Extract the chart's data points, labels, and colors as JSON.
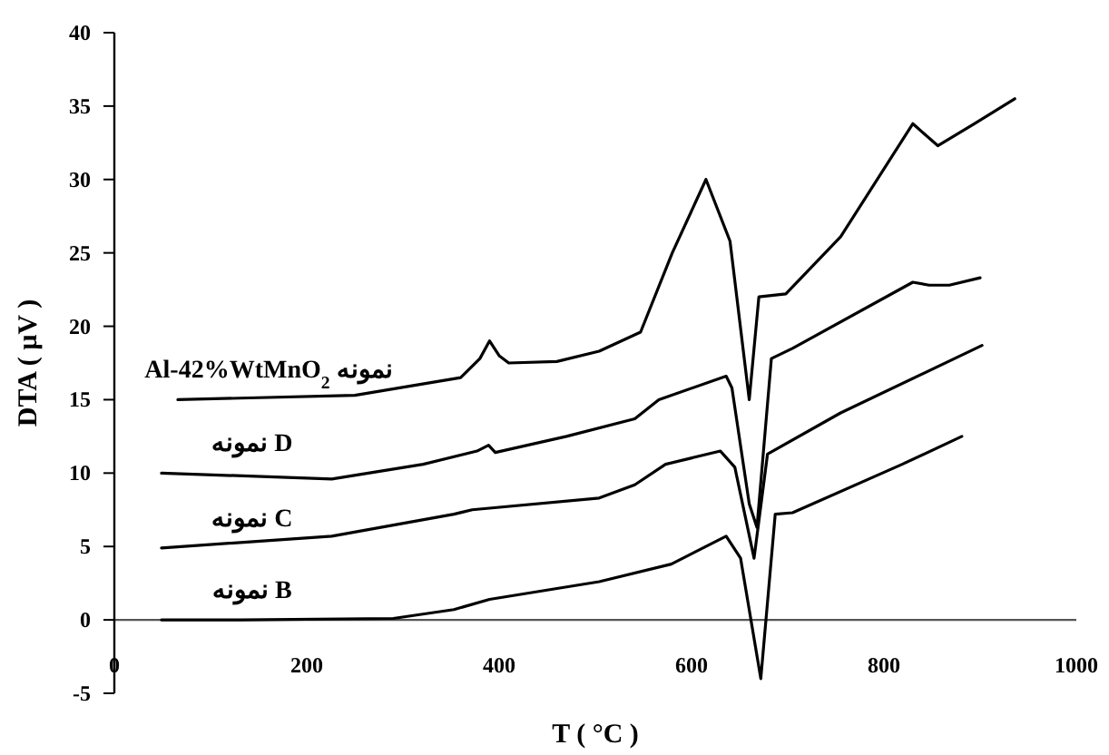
{
  "chart_data": {
    "type": "line",
    "xlabel": "T ( °C )",
    "ylabel": "DTA ( µV )",
    "xlim": [
      0,
      1000
    ],
    "xticks": [
      0,
      200,
      400,
      600,
      800,
      1000
    ],
    "ylim": [
      -5,
      40
    ],
    "yticks": [
      -5,
      0,
      5,
      10,
      15,
      20,
      25,
      30,
      35,
      40
    ],
    "grid": false,
    "marker": "none",
    "line_style": "solid",
    "series": [
      {
        "name": "Al-42%WtMnO$_{2}$  نمونه",
        "color": "#000000",
        "x": [
          66,
          250,
          360,
          380,
          390,
          400,
          410,
          460,
          504,
          547,
          580,
          615,
          640,
          660,
          670,
          698,
          755,
          830,
          856,
          894,
          936
        ],
        "values": [
          15.0,
          15.3,
          16.5,
          17.8,
          19.0,
          18.0,
          17.5,
          17.6,
          18.3,
          19.6,
          25.0,
          30.0,
          25.8,
          15.0,
          22.0,
          22.2,
          26.1,
          33.8,
          32.3,
          33.8,
          35.5
        ]
      },
      {
        "name": "نمونه D",
        "color": "#000000",
        "x": [
          49,
          226,
          321,
          377,
          389,
          396,
          470,
          541,
          566,
          636,
          642,
          660,
          668,
          683,
          705,
          830,
          847,
          868,
          900
        ],
        "values": [
          10.0,
          9.6,
          10.6,
          11.5,
          11.9,
          11.4,
          12.5,
          13.7,
          15.0,
          16.6,
          15.8,
          7.9,
          6.3,
          17.8,
          18.5,
          23.0,
          22.8,
          22.8,
          23.3
        ]
      },
      {
        "name": "نمونه C",
        "color": "#000000",
        "x": [
          49,
          226,
          353,
          372,
          504,
          541,
          573,
          630,
          645,
          665,
          679,
          755,
          902
        ],
        "values": [
          4.9,
          5.7,
          7.2,
          7.5,
          8.3,
          9.2,
          10.6,
          11.5,
          10.4,
          4.2,
          11.3,
          14.1,
          18.7
        ]
      },
      {
        "name": "نمونه B",
        "color": "#000000",
        "x": [
          49,
          132,
          290,
          353,
          390,
          504,
          579,
          636,
          651,
          672,
          687,
          705,
          819,
          881
        ],
        "values": [
          0.0,
          0.0,
          0.1,
          0.7,
          1.4,
          2.6,
          3.8,
          5.7,
          4.2,
          -4.0,
          7.2,
          7.3,
          10.6,
          12.5
        ]
      }
    ]
  }
}
